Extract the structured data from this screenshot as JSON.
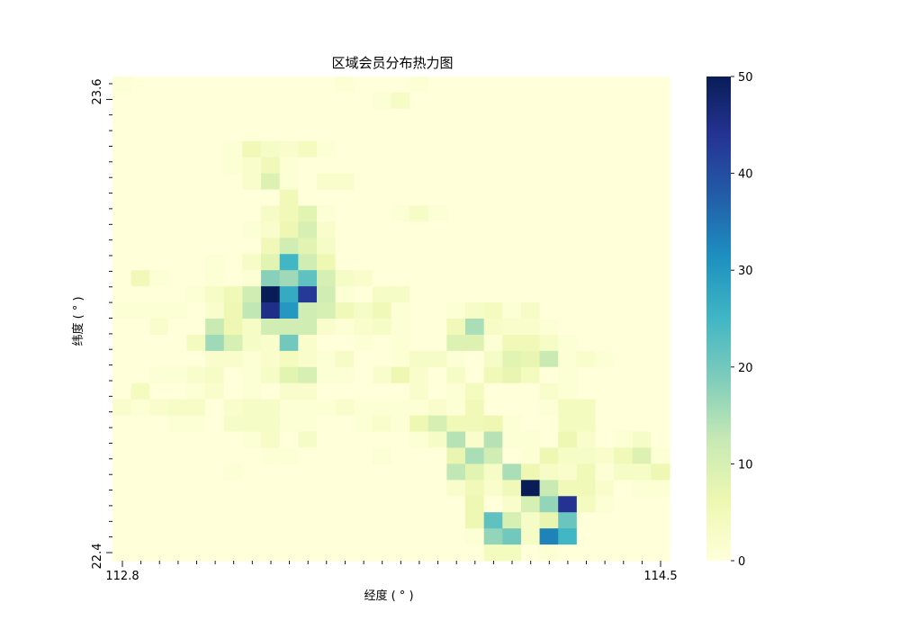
{
  "chart_data": {
    "type": "heatmap",
    "title": "区域会员分布热力图",
    "xlabel": "经度 ( ° )",
    "ylabel": "纬度 ( ° )",
    "x_tick_labels": [
      "112.8",
      "114.5"
    ],
    "y_tick_labels": [
      "23.6",
      "22.4"
    ],
    "colormap": "YlGnBu",
    "color_range": [
      0,
      50
    ],
    "colorbar_ticks": [
      "0",
      "10",
      "20",
      "30",
      "40",
      "50"
    ],
    "rows": 26,
    "cols": 30,
    "values": [
      [
        1,
        0,
        0,
        0,
        0,
        0,
        0,
        0,
        0,
        0,
        0,
        0,
        1,
        0,
        0,
        0,
        1,
        0,
        0,
        0,
        0,
        0,
        0,
        0,
        0,
        0,
        0,
        0,
        0,
        0
      ],
      [
        0,
        0,
        0,
        0,
        0,
        0,
        0,
        0,
        0,
        0,
        0,
        0,
        0,
        0,
        1,
        3,
        0,
        0,
        0,
        0,
        0,
        0,
        0,
        0,
        0,
        0,
        0,
        0,
        0,
        0
      ],
      [
        0,
        0,
        0,
        0,
        0,
        0,
        0,
        0,
        0,
        0,
        0,
        0,
        0,
        0,
        0,
        0,
        0,
        0,
        0,
        0,
        0,
        0,
        0,
        0,
        0,
        0,
        0,
        0,
        0,
        0
      ],
      [
        0,
        0,
        0,
        0,
        0,
        0,
        0,
        0,
        0,
        0,
        0,
        0,
        0,
        0,
        0,
        0,
        0,
        0,
        0,
        0,
        0,
        0,
        0,
        0,
        0,
        0,
        0,
        0,
        0,
        0
      ],
      [
        0,
        0,
        0,
        0,
        0,
        0,
        1,
        5,
        3,
        2,
        4,
        1,
        0,
        0,
        0,
        0,
        0,
        0,
        0,
        0,
        0,
        0,
        0,
        0,
        0,
        0,
        0,
        0,
        0,
        0
      ],
      [
        0,
        0,
        0,
        0,
        0,
        0,
        1,
        2,
        5,
        1,
        0,
        0,
        0,
        0,
        0,
        0,
        0,
        0,
        0,
        0,
        0,
        0,
        0,
        0,
        0,
        0,
        0,
        0,
        0,
        0
      ],
      [
        0,
        0,
        0,
        0,
        0,
        0,
        0,
        2,
        9,
        1,
        0,
        2,
        2,
        0,
        0,
        0,
        0,
        0,
        0,
        0,
        0,
        0,
        0,
        0,
        0,
        0,
        0,
        0,
        0,
        0
      ],
      [
        0,
        0,
        0,
        0,
        0,
        0,
        0,
        0,
        0,
        5,
        0,
        0,
        0,
        0,
        0,
        0,
        0,
        0,
        0,
        0,
        0,
        0,
        0,
        0,
        0,
        0,
        0,
        0,
        0,
        0
      ],
      [
        0,
        0,
        0,
        0,
        0,
        0,
        0,
        0,
        3,
        5,
        8,
        1,
        0,
        0,
        0,
        1,
        3,
        1,
        0,
        0,
        0,
        0,
        0,
        0,
        0,
        0,
        0,
        0,
        0,
        0
      ],
      [
        0,
        0,
        0,
        0,
        0,
        0,
        0,
        1,
        2,
        6,
        10,
        2,
        0,
        0,
        0,
        0,
        0,
        0,
        0,
        0,
        0,
        0,
        0,
        0,
        0,
        0,
        0,
        0,
        0,
        0
      ],
      [
        0,
        0,
        0,
        0,
        0,
        0,
        0,
        0,
        5,
        11,
        8,
        3,
        0,
        0,
        0,
        0,
        0,
        0,
        0,
        0,
        0,
        0,
        0,
        0,
        0,
        0,
        0,
        0,
        0,
        0
      ],
      [
        0,
        0,
        0,
        0,
        0,
        1,
        0,
        3,
        8,
        25,
        11,
        6,
        0,
        0,
        0,
        0,
        0,
        0,
        0,
        0,
        0,
        0,
        0,
        0,
        0,
        0,
        0,
        0,
        0,
        0
      ],
      [
        0,
        5,
        1,
        0,
        0,
        1,
        0,
        1,
        18,
        16,
        22,
        10,
        3,
        2,
        0,
        0,
        0,
        0,
        0,
        0,
        0,
        0,
        0,
        0,
        0,
        0,
        0,
        0,
        0,
        0
      ],
      [
        0,
        0,
        0,
        0,
        1,
        3,
        5,
        11,
        50,
        27,
        43,
        11,
        1,
        0,
        3,
        3,
        0,
        0,
        0,
        0,
        0,
        0,
        0,
        0,
        0,
        0,
        0,
        0,
        0,
        0
      ],
      [
        1,
        1,
        1,
        1,
        0,
        2,
        6,
        13,
        45,
        30,
        11,
        10,
        5,
        3,
        5,
        1,
        0,
        0,
        1,
        3,
        4,
        1,
        3,
        0,
        0,
        0,
        0,
        0,
        0,
        0
      ],
      [
        0,
        0,
        2,
        0,
        0,
        12,
        6,
        3,
        11,
        11,
        11,
        2,
        1,
        2,
        3,
        1,
        0,
        0,
        5,
        15,
        3,
        2,
        2,
        1,
        0,
        0,
        0,
        0,
        0,
        0
      ],
      [
        0,
        0,
        0,
        0,
        4,
        16,
        10,
        3,
        2,
        20,
        2,
        0,
        0,
        1,
        0,
        1,
        0,
        0,
        9,
        9,
        1,
        5,
        5,
        3,
        1,
        0,
        0,
        0,
        0,
        0
      ],
      [
        0,
        0,
        0,
        0,
        0,
        2,
        2,
        1,
        2,
        4,
        2,
        1,
        3,
        0,
        0,
        1,
        3,
        3,
        1,
        0,
        3,
        8,
        7,
        12,
        1,
        2,
        1,
        0,
        0,
        0
      ],
      [
        0,
        0,
        1,
        1,
        2,
        3,
        0,
        1,
        3,
        8,
        10,
        1,
        1,
        0,
        2,
        6,
        2,
        0,
        3,
        0,
        5,
        7,
        4,
        0,
        1,
        0,
        0,
        0,
        0,
        0
      ],
      [
        0,
        4,
        0,
        0,
        1,
        2,
        0,
        1,
        0,
        2,
        2,
        0,
        0,
        0,
        0,
        0,
        2,
        0,
        1,
        4,
        0,
        0,
        0,
        2,
        1,
        0,
        0,
        0,
        0,
        0
      ],
      [
        2,
        1,
        2,
        3,
        3,
        0,
        2,
        3,
        3,
        1,
        1,
        1,
        2,
        1,
        1,
        1,
        1,
        2,
        1,
        5,
        0,
        0,
        0,
        1,
        4,
        4,
        0,
        0,
        0,
        0
      ],
      [
        0,
        0,
        0,
        1,
        1,
        0,
        3,
        3,
        3,
        1,
        1,
        0,
        0,
        1,
        2,
        1,
        6,
        10,
        5,
        5,
        6,
        1,
        0,
        0,
        4,
        4,
        0,
        0,
        0,
        0
      ],
      [
        0,
        0,
        0,
        0,
        0,
        0,
        0,
        1,
        3,
        0,
        3,
        0,
        0,
        0,
        0,
        0,
        1,
        3,
        14,
        2,
        14,
        1,
        1,
        0,
        6,
        2,
        0,
        1,
        3,
        0
      ],
      [
        0,
        0,
        0,
        0,
        0,
        0,
        0,
        0,
        1,
        1,
        0,
        0,
        0,
        0,
        1,
        0,
        0,
        0,
        7,
        15,
        11,
        0,
        1,
        6,
        3,
        3,
        2,
        5,
        9,
        1
      ],
      [
        0,
        0,
        0,
        0,
        0,
        0,
        1,
        0,
        0,
        0,
        0,
        0,
        0,
        0,
        0,
        0,
        0,
        0,
        13,
        8,
        3,
        15,
        6,
        3,
        2,
        5,
        1,
        3,
        3,
        6
      ],
      [
        0,
        0,
        0,
        0,
        0,
        0,
        0,
        0,
        0,
        0,
        0,
        0,
        0,
        0,
        0,
        0,
        0,
        0,
        2,
        5,
        2,
        5,
        50,
        12,
        5,
        5,
        2,
        0,
        1,
        1
      ]
    ],
    "values_bottom": [
      [
        0,
        0,
        0,
        0,
        0,
        0,
        0,
        0,
        0,
        0,
        0,
        0,
        0,
        0,
        0,
        0,
        0,
        0,
        0,
        6,
        0,
        2,
        10,
        17,
        44,
        4,
        1,
        0,
        0,
        0
      ],
      [
        0,
        0,
        0,
        0,
        0,
        0,
        0,
        0,
        0,
        0,
        0,
        0,
        0,
        0,
        0,
        0,
        0,
        0,
        0,
        6,
        22,
        10,
        3,
        7,
        21,
        0,
        0,
        0,
        0,
        0
      ],
      [
        0,
        0,
        0,
        0,
        0,
        0,
        0,
        0,
        0,
        0,
        0,
        0,
        0,
        0,
        0,
        0,
        0,
        0,
        0,
        1,
        17,
        20,
        3,
        33,
        25,
        0,
        0,
        0,
        0,
        0
      ],
      [
        0,
        0,
        0,
        0,
        0,
        0,
        0,
        0,
        0,
        0,
        0,
        0,
        0,
        0,
        0,
        0,
        0,
        0,
        0,
        0,
        4,
        4,
        0,
        1,
        0,
        0,
        0,
        0,
        0,
        0
      ]
    ]
  }
}
